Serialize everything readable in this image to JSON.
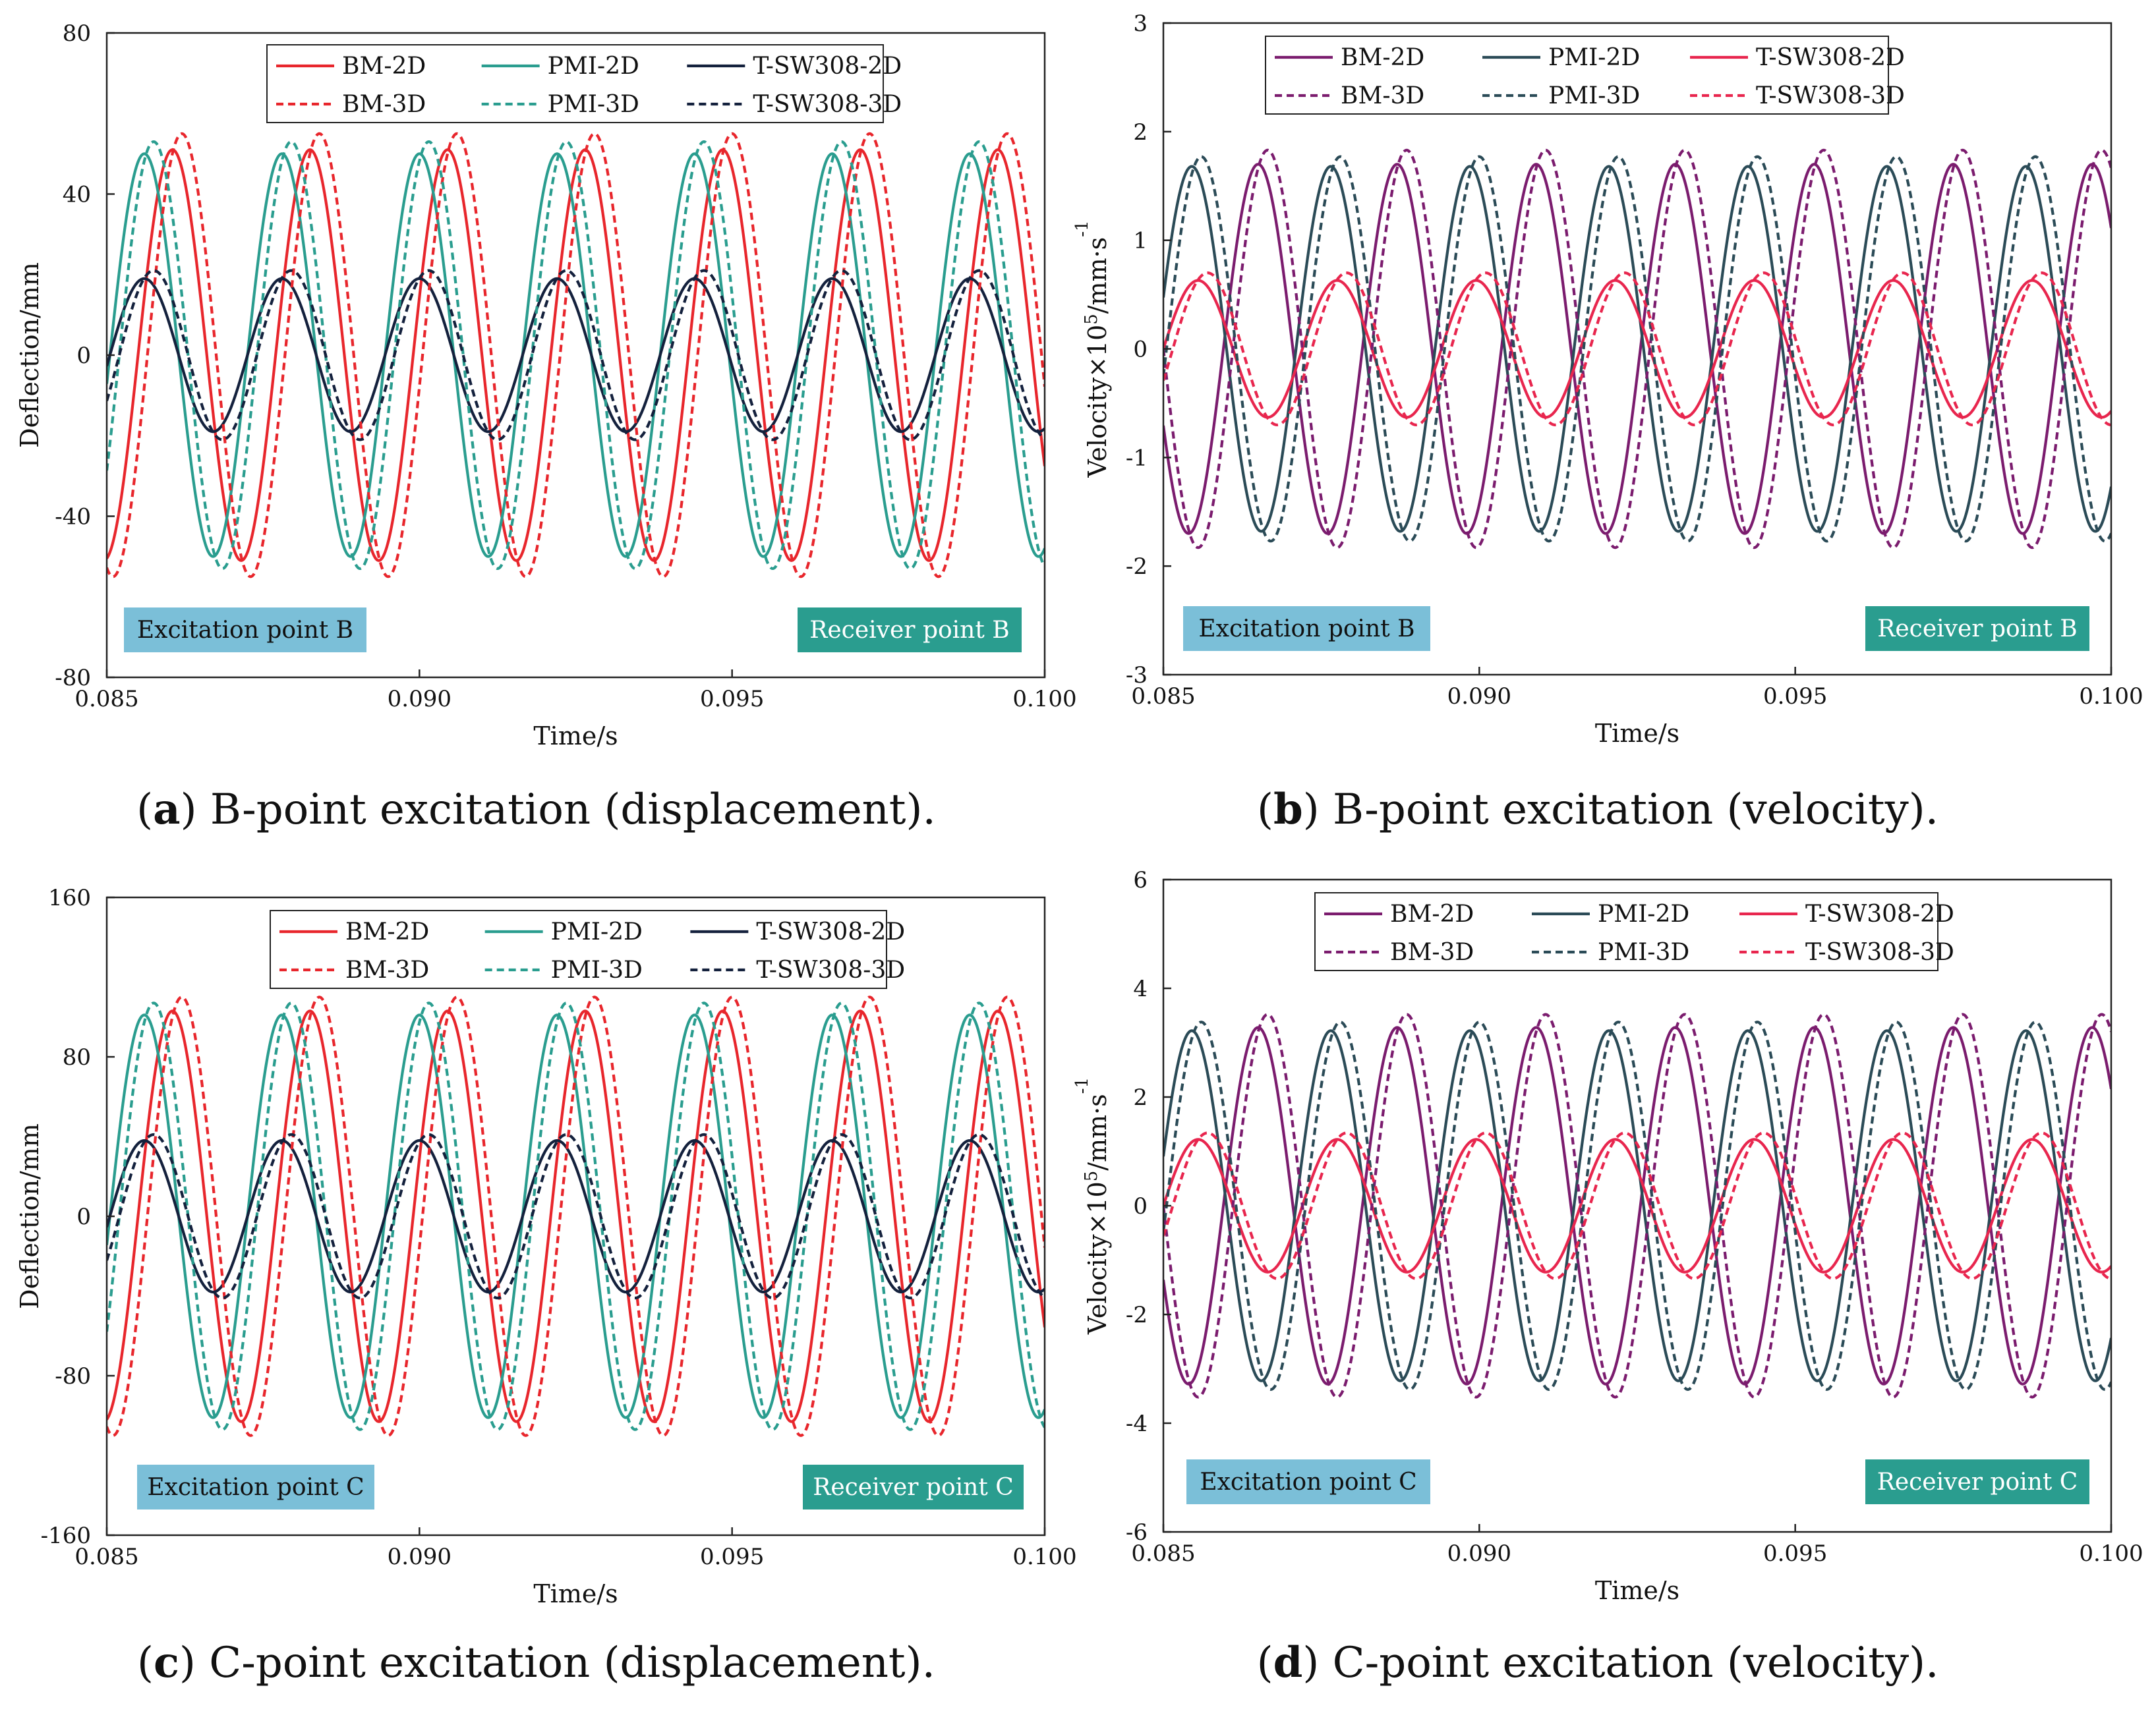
{
  "chart_data": [
    {
      "id": "a",
      "type": "line",
      "caption_letter": "a",
      "caption_text": " B-point excitation (displacement).",
      "xlabel": "Time/s",
      "ylabel": "Deflection/mm",
      "xlim": [
        0.085,
        0.1
      ],
      "ylim": [
        -80,
        80
      ],
      "xticks": [
        "0.085",
        "0.090",
        "0.095",
        "0.100"
      ],
      "xtick_values": [
        0.085,
        0.09,
        0.095,
        0.1
      ],
      "yticks": [
        "80",
        "40",
        "0",
        "-40",
        "-80"
      ],
      "ytick_values": [
        80,
        40,
        0,
        -40,
        -80
      ],
      "legend": [
        "BM-2D",
        "PMI-2D",
        "T-SW308-2D",
        "BM-3D",
        "PMI-3D",
        "T-SW308-3D"
      ],
      "excitation_label": "Excitation point B",
      "receiver_label": "Receiver point B",
      "series": [
        {
          "name": "BM-2D",
          "color": "#e8262c",
          "style": "solid",
          "amplitude": 51,
          "period": 0.0022,
          "phase_time": 0.0855
        },
        {
          "name": "PMI-2D",
          "color": "#2a9d8f",
          "style": "solid",
          "amplitude": 50,
          "period": 0.0022,
          "phase_time": 0.08505
        },
        {
          "name": "T-SW308-2D",
          "color": "#14213d",
          "style": "solid",
          "amplitude": 19,
          "period": 0.0022,
          "phase_time": 0.08505
        },
        {
          "name": "BM-3D",
          "color": "#e8262c",
          "style": "dashed",
          "amplitude": 55,
          "period": 0.0022,
          "phase_time": 0.08565
        },
        {
          "name": "PMI-3D",
          "color": "#2a9d8f",
          "style": "dashed",
          "amplitude": 53,
          "period": 0.0022,
          "phase_time": 0.0852
        },
        {
          "name": "T-SW308-3D",
          "color": "#14213d",
          "style": "dashed",
          "amplitude": 21,
          "period": 0.0022,
          "phase_time": 0.0852
        }
      ]
    },
    {
      "id": "b",
      "type": "line",
      "caption_letter": "b",
      "caption_text": " B-point excitation (velocity).",
      "xlabel": "Time/s",
      "ylabel_main": "Velocity×10",
      "ylabel_sup1": "5",
      "ylabel_mid": "/mm·s",
      "ylabel_sup2": "-1",
      "xlim": [
        0.085,
        0.1
      ],
      "ylim": [
        -3,
        3
      ],
      "xticks": [
        "0.085",
        "0.090",
        "0.095",
        "0.100"
      ],
      "xtick_values": [
        0.085,
        0.09,
        0.095,
        0.1
      ],
      "yticks": [
        "3",
        "2",
        "1",
        "0",
        "-1",
        "-2",
        "-3"
      ],
      "ytick_values": [
        3,
        2,
        1,
        0,
        -1,
        -2,
        -3
      ],
      "legend": [
        "BM-2D",
        "PMI-2D",
        "T-SW308-2D",
        "BM-3D",
        "PMI-3D",
        "T-SW308-3D"
      ],
      "excitation_label": "Excitation point B",
      "receiver_label": "Receiver point B",
      "series": [
        {
          "name": "BM-2D",
          "color": "#7b1c6e",
          "style": "solid",
          "amplitude": 1.7,
          "period": 0.0022,
          "phase_time": 0.08595
        },
        {
          "name": "PMI-2D",
          "color": "#2b4b57",
          "style": "solid",
          "amplitude": 1.68,
          "period": 0.0022,
          "phase_time": 0.0849
        },
        {
          "name": "T-SW308-2D",
          "color": "#e8264e",
          "style": "solid",
          "amplitude": 0.63,
          "period": 0.0022,
          "phase_time": 0.085
        },
        {
          "name": "BM-3D",
          "color": "#7b1c6e",
          "style": "dashed",
          "amplitude": 1.83,
          "period": 0.0022,
          "phase_time": 0.0861
        },
        {
          "name": "PMI-3D",
          "color": "#2b4b57",
          "style": "dashed",
          "amplitude": 1.77,
          "period": 0.0022,
          "phase_time": 0.08505
        },
        {
          "name": "T-SW308-3D",
          "color": "#e8264e",
          "style": "dashed",
          "amplitude": 0.7,
          "period": 0.0022,
          "phase_time": 0.08515
        }
      ]
    },
    {
      "id": "c",
      "type": "line",
      "caption_letter": "c",
      "caption_text": " C-point excitation (displacement).",
      "xlabel": "Time/s",
      "ylabel": "Deflection/mm",
      "xlim": [
        0.085,
        0.1
      ],
      "ylim": [
        -160,
        160
      ],
      "xticks": [
        "0.085",
        "0.090",
        "0.095",
        "0.100"
      ],
      "xtick_values": [
        0.085,
        0.09,
        0.095,
        0.1
      ],
      "yticks": [
        "160",
        "80",
        "0",
        "-80",
        "-160"
      ],
      "ytick_values": [
        160,
        80,
        0,
        -80,
        -160
      ],
      "legend": [
        "BM-2D",
        "PMI-2D",
        "T-SW308-2D",
        "BM-3D",
        "PMI-3D",
        "T-SW308-3D"
      ],
      "excitation_label": "Excitation point C",
      "receiver_label": "Receiver point C",
      "series": [
        {
          "name": "BM-2D",
          "color": "#e8262c",
          "style": "solid",
          "amplitude": 103,
          "period": 0.0022,
          "phase_time": 0.0855
        },
        {
          "name": "PMI-2D",
          "color": "#2a9d8f",
          "style": "solid",
          "amplitude": 101,
          "period": 0.0022,
          "phase_time": 0.08505
        },
        {
          "name": "T-SW308-2D",
          "color": "#14213d",
          "style": "solid",
          "amplitude": 38,
          "period": 0.0022,
          "phase_time": 0.08505
        },
        {
          "name": "BM-3D",
          "color": "#e8262c",
          "style": "dashed",
          "amplitude": 110,
          "period": 0.0022,
          "phase_time": 0.08565
        },
        {
          "name": "PMI-3D",
          "color": "#2a9d8f",
          "style": "dashed",
          "amplitude": 107,
          "period": 0.0022,
          "phase_time": 0.0852
        },
        {
          "name": "T-SW308-3D",
          "color": "#14213d",
          "style": "dashed",
          "amplitude": 41,
          "period": 0.0022,
          "phase_time": 0.0852
        }
      ]
    },
    {
      "id": "d",
      "type": "line",
      "caption_letter": "d",
      "caption_text": " C-point excitation (velocity).",
      "xlabel": "Time/s",
      "ylabel_main": "Velocity×10",
      "ylabel_sup1": "5",
      "ylabel_mid": "/mm·s",
      "ylabel_sup2": "-1",
      "xlim": [
        0.085,
        0.1
      ],
      "ylim": [
        -6,
        6
      ],
      "xticks": [
        "0.085",
        "0.090",
        "0.095",
        "0.100"
      ],
      "xtick_values": [
        0.085,
        0.09,
        0.095,
        0.1
      ],
      "yticks": [
        "6",
        "4",
        "2",
        "0",
        "-2",
        "-4",
        "-6"
      ],
      "ytick_values": [
        6,
        4,
        2,
        0,
        -2,
        -4,
        -6
      ],
      "legend": [
        "BM-2D",
        "PMI-2D",
        "T-SW308-2D",
        "BM-3D",
        "PMI-3D",
        "T-SW308-3D"
      ],
      "excitation_label": "Excitation point C",
      "receiver_label": "Receiver point C",
      "series": [
        {
          "name": "BM-2D",
          "color": "#7b1c6e",
          "style": "solid",
          "amplitude": 3.28,
          "period": 0.0022,
          "phase_time": 0.08595
        },
        {
          "name": "PMI-2D",
          "color": "#2b4b57",
          "style": "solid",
          "amplitude": 3.22,
          "period": 0.0022,
          "phase_time": 0.0849
        },
        {
          "name": "T-SW308-2D",
          "color": "#e8264e",
          "style": "solid",
          "amplitude": 1.22,
          "period": 0.0022,
          "phase_time": 0.085
        },
        {
          "name": "BM-3D",
          "color": "#7b1c6e",
          "style": "dashed",
          "amplitude": 3.52,
          "period": 0.0022,
          "phase_time": 0.0861
        },
        {
          "name": "PMI-3D",
          "color": "#2b4b57",
          "style": "dashed",
          "amplitude": 3.38,
          "period": 0.0022,
          "phase_time": 0.08505
        },
        {
          "name": "T-SW308-3D",
          "color": "#e8264e",
          "style": "dashed",
          "amplitude": 1.34,
          "period": 0.0022,
          "phase_time": 0.08515
        }
      ]
    }
  ],
  "colors": {
    "excitation_box": "#7bbfd8",
    "receiver_box": "#2a9d8f",
    "receiver_text": "#ffffff"
  }
}
